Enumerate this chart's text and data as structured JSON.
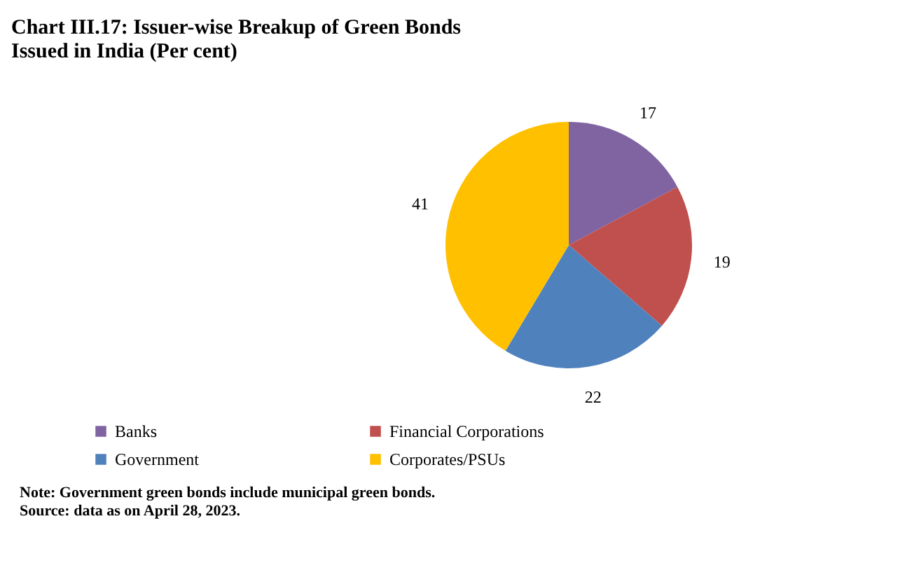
{
  "chart_data": {
    "type": "pie",
    "title": "Chart III.17: Issuer-wise Breakup of Green Bonds Issued in India (Per cent)",
    "categories": [
      "Banks",
      "Financial Corporations",
      "Government",
      "Corporates/PSUs"
    ],
    "values": [
      17,
      19,
      22,
      41
    ],
    "colors": [
      "#8064a2",
      "#c0504d",
      "#4f81bd",
      "#ffc000"
    ],
    "data_labels": true,
    "legend": "bottom",
    "annotations": [
      "Note: Government green bonds include municipal green bonds.",
      "Source: data as on April 28, 2023."
    ]
  }
}
